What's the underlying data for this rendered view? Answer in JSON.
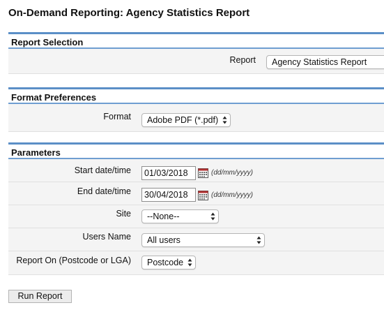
{
  "page": {
    "title": "On-Demand Reporting: Agency Statistics Report"
  },
  "report_selection": {
    "heading": "Report Selection",
    "report_label": "Report",
    "report_value": "Agency Statistics Report"
  },
  "format_preferences": {
    "heading": "Format Preferences",
    "format_label": "Format",
    "format_value": "Adobe PDF (*.pdf)"
  },
  "parameters": {
    "heading": "Parameters",
    "start_label": "Start date/time",
    "start_value": "01/03/2018",
    "end_label": "End date/time",
    "end_value": "30/04/2018",
    "date_hint": "(dd/mm/yyyy)",
    "site_label": "Site",
    "site_value": "--None--",
    "users_label": "Users Name",
    "users_value": "All users",
    "report_on_label": "Report On (Postcode or LGA)",
    "report_on_value": "Postcode"
  },
  "actions": {
    "run_label": "Run Report"
  },
  "icons": {
    "calendar": "calendar-icon",
    "select_arrows": "updown-arrows-icon"
  },
  "colors": {
    "section_border": "#5b8fc7",
    "row_bg": "#f4f4f4"
  }
}
